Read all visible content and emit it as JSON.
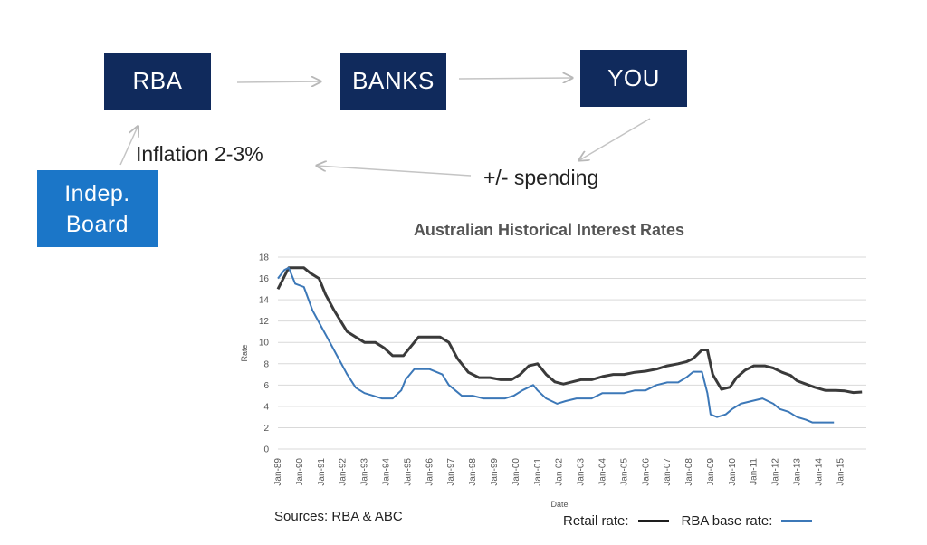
{
  "diagram": {
    "rba_label": "RBA",
    "banks_label": "BANKS",
    "you_label": "YOU",
    "board_label_line1": "Indep.",
    "board_label_line2": "Board",
    "inflation_label": "Inflation 2-3%",
    "spending_label": "+/- spending",
    "colors": {
      "navy": "#102a5c",
      "blue": "#1b76c8",
      "arrow": "#c0c0c0"
    }
  },
  "chart_data": {
    "type": "line",
    "title": "Australian Historical Interest Rates",
    "xlabel": "Date",
    "ylabel": "Rate",
    "ylim": [
      0,
      18
    ],
    "yticks": [
      0,
      2,
      4,
      6,
      8,
      10,
      12,
      14,
      16,
      18
    ],
    "xlim": [
      1989.0,
      2016.2
    ],
    "xticks": [
      "Jan-89",
      "Jan-90",
      "Jan-91",
      "Jan-92",
      "Jan-93",
      "Jan-94",
      "Jan-95",
      "Jan-96",
      "Jan-97",
      "Jan-98",
      "Jan-99",
      "Jan-00",
      "Jan-01",
      "Jan-02",
      "Jan-03",
      "Jan-04",
      "Jan-05",
      "Jan-06",
      "Jan-07",
      "Jan-08",
      "Jan-09",
      "Jan-10",
      "Jan-11",
      "Jan-12",
      "Jan-13",
      "Jan-14",
      "Jan-15"
    ],
    "grid": true,
    "series": [
      {
        "name": "Retail rate:",
        "color": "#3a3a3a",
        "x": [
          1989.0,
          1989.2,
          1989.5,
          1989.8,
          1990.2,
          1990.5,
          1990.9,
          1991.2,
          1991.6,
          1991.9,
          1992.2,
          1992.6,
          1993.0,
          1993.5,
          1993.9,
          1994.3,
          1994.8,
          1995.1,
          1995.5,
          1996.0,
          1996.5,
          1996.9,
          1997.3,
          1997.8,
          1998.3,
          1998.8,
          1999.3,
          1999.8,
          2000.2,
          2000.6,
          2001.0,
          2001.4,
          2001.8,
          2002.2,
          2002.6,
          2003.0,
          2003.5,
          2004.0,
          2004.5,
          2005.0,
          2005.5,
          2006.0,
          2006.5,
          2007.0,
          2007.5,
          2007.9,
          2008.2,
          2008.6,
          2008.85,
          2009.1,
          2009.5,
          2009.9,
          2010.2,
          2010.6,
          2011.0,
          2011.5,
          2011.9,
          2012.3,
          2012.7,
          2013.0,
          2013.4,
          2013.8,
          2014.3,
          2014.8,
          2015.2,
          2015.6,
          2016.0
        ],
        "y": [
          15.0,
          15.8,
          17.0,
          17.0,
          17.0,
          16.5,
          16.0,
          14.5,
          13.0,
          12.0,
          11.0,
          10.5,
          10.0,
          10.0,
          9.5,
          8.75,
          8.75,
          9.5,
          10.5,
          10.5,
          10.5,
          10.0,
          8.5,
          7.2,
          6.7,
          6.7,
          6.5,
          6.5,
          7.0,
          7.8,
          8.0,
          7.0,
          6.3,
          6.1,
          6.3,
          6.5,
          6.5,
          6.8,
          7.0,
          7.0,
          7.2,
          7.3,
          7.5,
          7.8,
          8.0,
          8.2,
          8.5,
          9.3,
          9.3,
          7.0,
          5.6,
          5.8,
          6.7,
          7.4,
          7.8,
          7.8,
          7.6,
          7.2,
          6.9,
          6.4,
          6.1,
          5.8,
          5.5,
          5.5,
          5.45,
          5.3,
          5.35
        ]
      },
      {
        "name": "RBA base rate:",
        "color": "#3c78b8",
        "x": [
          1989.0,
          1989.3,
          1989.5,
          1989.8,
          1990.2,
          1990.6,
          1991.0,
          1991.4,
          1991.8,
          1992.2,
          1992.6,
          1993.0,
          1993.4,
          1993.8,
          1994.3,
          1994.7,
          1994.9,
          1995.3,
          1996.0,
          1996.6,
          1996.9,
          1997.5,
          1998.0,
          1998.5,
          1999.0,
          1999.5,
          1999.9,
          2000.3,
          2000.8,
          2001.0,
          2001.4,
          2001.9,
          2002.3,
          2002.8,
          2003.5,
          2004.0,
          2004.5,
          2005.0,
          2005.5,
          2006.0,
          2006.5,
          2007.0,
          2007.5,
          2007.9,
          2008.2,
          2008.6,
          2008.85,
          2009.0,
          2009.3,
          2009.7,
          2010.0,
          2010.4,
          2010.9,
          2011.4,
          2011.9,
          2012.2,
          2012.6,
          2013.0,
          2013.4,
          2013.7,
          2014.2,
          2014.7
        ],
        "y": [
          16.0,
          16.8,
          17.0,
          15.5,
          15.2,
          13.0,
          11.5,
          10.0,
          8.5,
          7.0,
          5.75,
          5.25,
          5.0,
          4.75,
          4.75,
          5.5,
          6.5,
          7.5,
          7.5,
          7.0,
          6.0,
          5.0,
          5.0,
          4.75,
          4.75,
          4.75,
          5.0,
          5.5,
          6.0,
          5.5,
          4.75,
          4.25,
          4.5,
          4.75,
          4.75,
          5.25,
          5.25,
          5.25,
          5.5,
          5.5,
          6.0,
          6.25,
          6.25,
          6.75,
          7.25,
          7.25,
          5.25,
          3.25,
          3.0,
          3.25,
          3.75,
          4.25,
          4.5,
          4.75,
          4.25,
          3.75,
          3.5,
          3.0,
          2.75,
          2.5,
          2.5,
          2.5
        ]
      }
    ]
  },
  "footer": {
    "sources": "Sources: RBA & ABC",
    "legend_retail": "Retail rate:",
    "legend_rba": "RBA base rate:"
  }
}
